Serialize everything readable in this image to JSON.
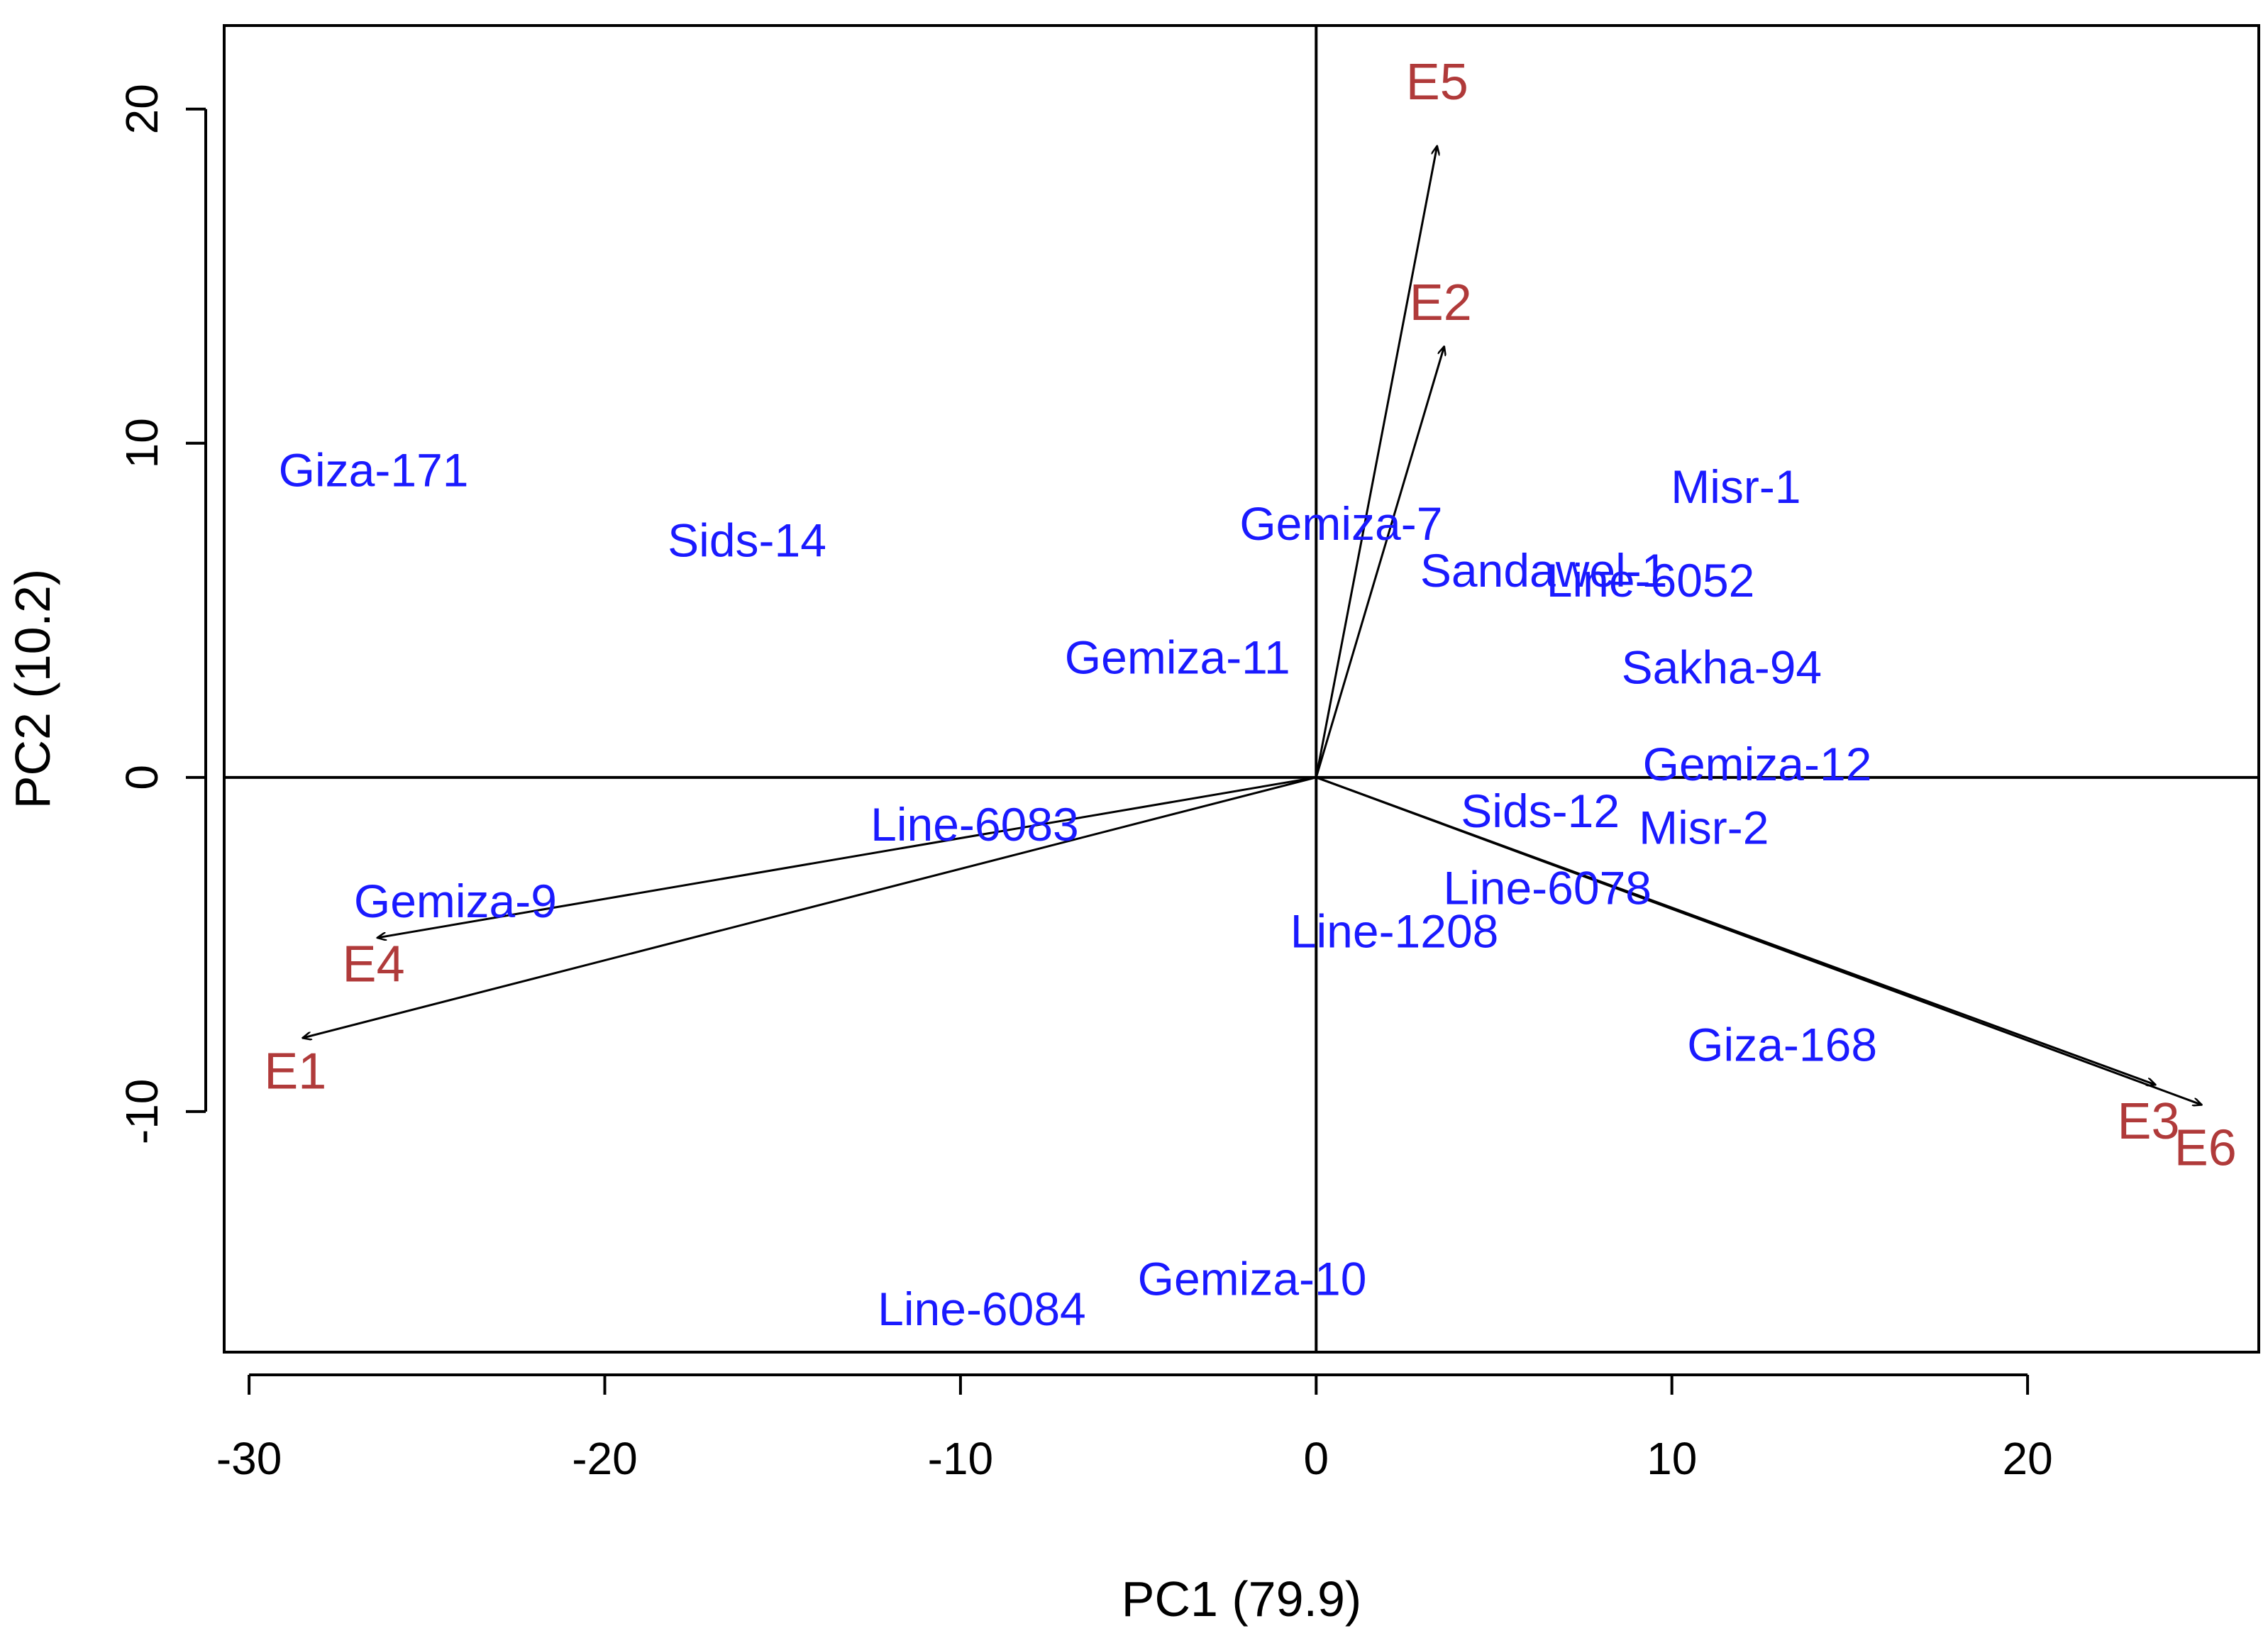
{
  "colors": {
    "genotype": "#1a1aff",
    "environment": "#b03a3a",
    "axis": "#000000",
    "background": "#ffffff"
  },
  "chart_data": {
    "type": "scatter",
    "subtype": "biplot",
    "title": "",
    "xlabel": "PC1 (79.9)",
    "ylabel": "PC2 (10.2)",
    "xlim": [
      -30.7,
      26.5
    ],
    "ylim": [
      -17.2,
      22.5
    ],
    "xticks": [
      -30,
      -20,
      -10,
      0,
      10,
      20
    ],
    "yticks": [
      -10,
      0,
      10,
      20
    ],
    "xtick_labels": [
      "-30",
      "-20",
      "-10",
      "0",
      "10",
      "20"
    ],
    "ytick_labels": [
      "-10",
      "0",
      "10",
      "20"
    ],
    "reference_lines": {
      "x": 0,
      "y": 0
    },
    "genotypes": [
      {
        "name": "Giza-171",
        "x": -26.5,
        "y": 9.2
      },
      {
        "name": "Sids-14",
        "x": -16.0,
        "y": 7.1
      },
      {
        "name": "Gemiza-7",
        "x": 0.7,
        "y": 7.6
      },
      {
        "name": "Sandawel-1",
        "x": 6.4,
        "y": 6.2
      },
      {
        "name": "Line-6052",
        "x": 9.4,
        "y": 5.9
      },
      {
        "name": "Misr-1",
        "x": 11.8,
        "y": 8.7
      },
      {
        "name": "Sakha-94",
        "x": 11.4,
        "y": 3.3
      },
      {
        "name": "Gemiza-11",
        "x": -3.9,
        "y": 3.6
      },
      {
        "name": "Gemiza-12",
        "x": 12.4,
        "y": 0.4
      },
      {
        "name": "Sids-12",
        "x": 6.3,
        "y": -1.0
      },
      {
        "name": "Misr-2",
        "x": 10.9,
        "y": -1.5
      },
      {
        "name": "Line-6083",
        "x": -9.6,
        "y": -1.4
      },
      {
        "name": "Line-6078",
        "x": 6.5,
        "y": -3.3
      },
      {
        "name": "Line-1208",
        "x": 2.2,
        "y": -4.6
      },
      {
        "name": "Gemiza-9",
        "x": -24.2,
        "y": -3.7
      },
      {
        "name": "Giza-168",
        "x": 13.1,
        "y": -8.0
      },
      {
        "name": "Gemiza-10",
        "x": -1.8,
        "y": -15.0
      },
      {
        "name": "Line-6084",
        "x": -9.4,
        "y": -15.9
      }
    ],
    "environments": [
      {
        "name": "E1",
        "x": -28.5,
        "y": -7.8,
        "label_x": -28.7,
        "label_y": -8.8
      },
      {
        "name": "E2",
        "x": 3.6,
        "y": 12.9,
        "label_x": 3.5,
        "label_y": 14.2
      },
      {
        "name": "E3",
        "x": 23.6,
        "y": -9.2,
        "label_x": 23.4,
        "label_y": -10.3
      },
      {
        "name": "E4",
        "x": -26.4,
        "y": -4.8,
        "label_x": -26.5,
        "label_y": -5.6
      },
      {
        "name": "E5",
        "x": 3.4,
        "y": 18.9,
        "label_x": 3.4,
        "label_y": 20.8
      },
      {
        "name": "E6",
        "x": 24.9,
        "y": -9.8,
        "label_x": 25.0,
        "label_y": -11.1
      }
    ]
  }
}
